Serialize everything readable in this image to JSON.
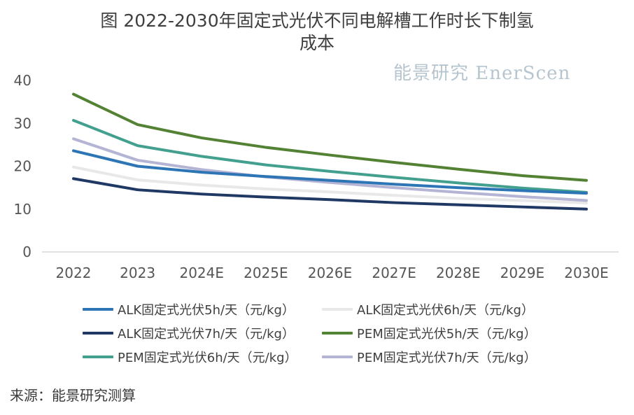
{
  "chart_data": {
    "type": "line",
    "title_line1": "图  2022-2030年固定式光伏不同电解槽工作时长下制氢",
    "title_line2": "成本",
    "categories": [
      "2022",
      "2023",
      "2024E",
      "2025E",
      "2026E",
      "2027E",
      "2028E",
      "2029E",
      "2030E"
    ],
    "ylim": [
      0,
      40
    ],
    "yticks": [
      "0",
      "10",
      "20",
      "30",
      "40"
    ],
    "grid": false,
    "legend_position": "bottom",
    "series": [
      {
        "name": "ALK固定式光伏5h/天（元/kg）",
        "color": "#2e75b6",
        "values": [
          23.6,
          20.0,
          18.6,
          17.6,
          16.7,
          15.8,
          15.0,
          14.3,
          13.7
        ]
      },
      {
        "name": "ALK固定式光伏6h/天（元/kg）",
        "color": "#e8e8e8",
        "values": [
          19.8,
          16.8,
          15.6,
          14.7,
          14.0,
          13.2,
          12.5,
          12.0,
          11.4
        ]
      },
      {
        "name": "ALK固定式光伏7h/天（元/kg）",
        "color": "#1f3864",
        "values": [
          17.1,
          14.5,
          13.5,
          12.8,
          12.2,
          11.5,
          11.0,
          10.5,
          10.0
        ]
      },
      {
        "name": "PEM固定式光伏5h/天（元/kg）",
        "color": "#548235",
        "values": [
          36.8,
          29.7,
          26.6,
          24.4,
          22.6,
          20.9,
          19.3,
          17.8,
          16.7
        ]
      },
      {
        "name": "PEM固定式光伏6h/天（元/kg）",
        "color": "#43a08e",
        "values": [
          30.7,
          24.8,
          22.3,
          20.3,
          18.8,
          17.4,
          16.1,
          14.9,
          13.9
        ]
      },
      {
        "name": "PEM固定式光伏7h/天（元/kg）",
        "color": "#b4b4d4",
        "values": [
          26.4,
          21.4,
          19.2,
          17.5,
          16.2,
          15.0,
          13.9,
          12.9,
          12.0
        ]
      }
    ]
  },
  "watermark": "能景研究 EnerScen",
  "source": "来源：能景研究测算"
}
